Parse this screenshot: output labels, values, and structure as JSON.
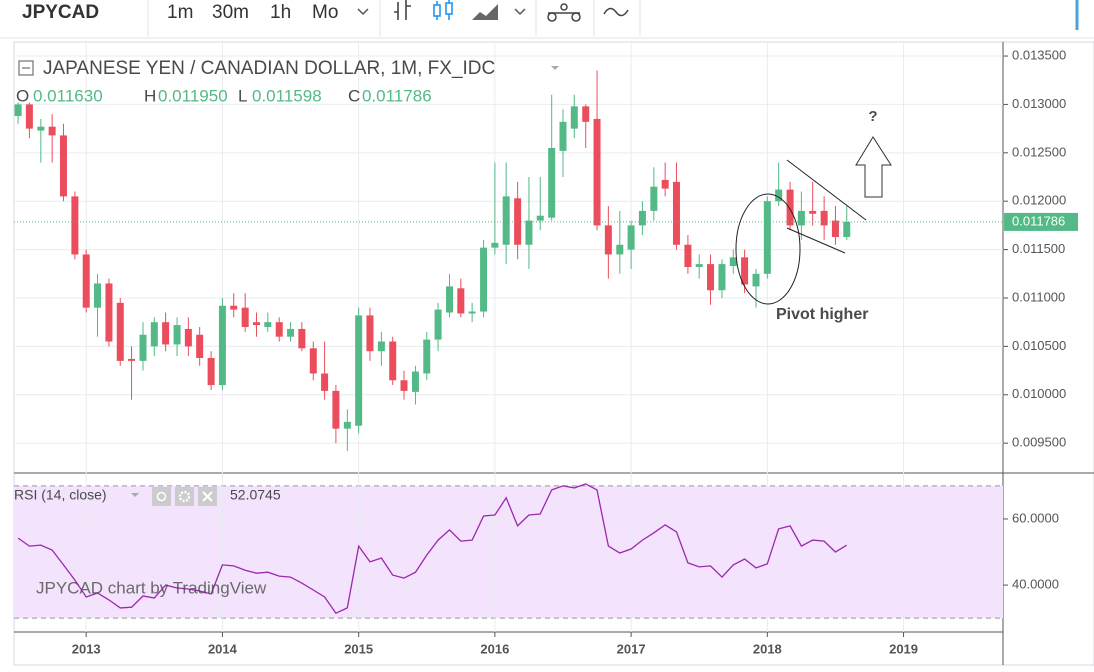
{
  "toolbar": {
    "symbol": "JPYCAD",
    "intervals": [
      "1m",
      "30m",
      "1h",
      "Mo"
    ]
  },
  "chart_data": [
    {
      "type": "candlestick",
      "title": "JAPANESE YEN / CANADIAN DOLLAR, 1M, FX_IDC",
      "ohlc_legend": [
        {
          "label": "O",
          "text": "0.011630"
        },
        {
          "label": "H",
          "text": "0.011950"
        },
        {
          "label": "L",
          "text": "0.011598"
        },
        {
          "label": "C",
          "text": "0.011786"
        }
      ],
      "x": [
        2012.5,
        2012.583,
        2012.667,
        2012.75,
        2012.833,
        2012.917,
        2013,
        2013.083,
        2013.167,
        2013.25,
        2013.333,
        2013.417,
        2013.5,
        2013.583,
        2013.667,
        2013.75,
        2013.833,
        2013.917,
        2014,
        2014.083,
        2014.167,
        2014.25,
        2014.333,
        2014.417,
        2014.5,
        2014.583,
        2014.667,
        2014.75,
        2014.833,
        2014.917,
        2015,
        2015.083,
        2015.167,
        2015.25,
        2015.333,
        2015.417,
        2015.5,
        2015.583,
        2015.667,
        2015.75,
        2015.833,
        2015.917,
        2016,
        2016.083,
        2016.167,
        2016.25,
        2016.333,
        2016.417,
        2016.5,
        2016.583,
        2016.667,
        2016.75,
        2016.833,
        2016.917,
        2017,
        2017.083,
        2017.167,
        2017.25,
        2017.333,
        2017.417,
        2017.5,
        2017.583,
        2017.667,
        2017.75,
        2017.833,
        2017.917,
        2018,
        2018.083,
        2018.167,
        2018.25,
        2018.333,
        2018.417,
        2018.5,
        2018.583
      ],
      "open": [
        0.01288,
        0.013,
        0.01273,
        0.01277,
        0.01268,
        0.01205,
        0.01145,
        0.0109,
        0.01115,
        0.01095,
        0.01037,
        0.01035,
        0.0105,
        0.01075,
        0.01052,
        0.01068,
        0.01062,
        0.01038,
        0.0101,
        0.01092,
        0.0109,
        0.01075,
        0.0107,
        0.01075,
        0.0106,
        0.01068,
        0.01048,
        0.01022,
        0.01004,
        0.00965,
        0.00968,
        0.01082,
        0.01045,
        0.01055,
        0.01015,
        0.01003,
        0.01022,
        0.01057,
        0.01085,
        0.0111,
        0.01084,
        0.01086,
        0.01152,
        0.01155,
        0.01203,
        0.01155,
        0.0118,
        0.01183,
        0.01252,
        0.01275,
        0.01298,
        0.01285,
        0.01175,
        0.01145,
        0.0115,
        0.01175,
        0.0119,
        0.01222,
        0.0122,
        0.01155,
        0.01132,
        0.01135,
        0.01108,
        0.01133,
        0.01142,
        0.01112,
        0.01125,
        0.012,
        0.01212,
        0.01175,
        0.0119,
        0.0119,
        0.0118,
        0.01163
      ],
      "high": [
        0.01302,
        0.01302,
        0.01285,
        0.0129,
        0.0128,
        0.0121,
        0.0115,
        0.01125,
        0.0112,
        0.011,
        0.0105,
        0.01075,
        0.0108,
        0.01085,
        0.0108,
        0.0108,
        0.0107,
        0.01045,
        0.011,
        0.01105,
        0.01105,
        0.01085,
        0.01085,
        0.0108,
        0.01075,
        0.01075,
        0.01055,
        0.01055,
        0.0101,
        0.00985,
        0.0109,
        0.0109,
        0.01065,
        0.0106,
        0.01025,
        0.0103,
        0.01065,
        0.01095,
        0.01125,
        0.0112,
        0.01095,
        0.0116,
        0.0124,
        0.0124,
        0.0122,
        0.01225,
        0.01225,
        0.0131,
        0.01295,
        0.0131,
        0.013,
        0.01335,
        0.01195,
        0.0119,
        0.0118,
        0.012,
        0.01235,
        0.0124,
        0.0124,
        0.01165,
        0.01145,
        0.01145,
        0.0114,
        0.0115,
        0.0115,
        0.0113,
        0.01205,
        0.0124,
        0.0122,
        0.0121,
        0.0122,
        0.01205,
        0.01195,
        0.01195
      ],
      "low": [
        0.0128,
        0.01265,
        0.0124,
        0.0124,
        0.012,
        0.0114,
        0.01085,
        0.0106,
        0.0105,
        0.0103,
        0.00995,
        0.01025,
        0.0104,
        0.01045,
        0.0104,
        0.0104,
        0.0103,
        0.01005,
        0.01005,
        0.0108,
        0.01065,
        0.0106,
        0.01065,
        0.01055,
        0.01055,
        0.01045,
        0.01015,
        0.00995,
        0.0095,
        0.00942,
        0.0096,
        0.01035,
        0.0103,
        0.0101,
        0.00995,
        0.0099,
        0.01015,
        0.01045,
        0.0108,
        0.0108,
        0.01075,
        0.0108,
        0.01145,
        0.01135,
        0.0114,
        0.0113,
        0.0117,
        0.0118,
        0.01225,
        0.01265,
        0.01255,
        0.0117,
        0.0112,
        0.01125,
        0.0113,
        0.01165,
        0.0118,
        0.01205,
        0.0115,
        0.01125,
        0.0112,
        0.01093,
        0.011,
        0.01125,
        0.01105,
        0.0109,
        0.0112,
        0.01195,
        0.0117,
        0.0116,
        0.01175,
        0.0116,
        0.01155,
        0.011598
      ],
      "close": [
        0.013,
        0.01275,
        0.01277,
        0.01268,
        0.01205,
        0.01145,
        0.0109,
        0.01115,
        0.01055,
        0.01035,
        0.01035,
        0.01062,
        0.01075,
        0.01052,
        0.01072,
        0.0105,
        0.01038,
        0.0101,
        0.01092,
        0.01088,
        0.0107,
        0.01072,
        0.01075,
        0.0106,
        0.01068,
        0.01048,
        0.01022,
        0.01004,
        0.00965,
        0.00972,
        0.01082,
        0.01045,
        0.01055,
        0.01015,
        0.01004,
        0.01024,
        0.01057,
        0.01088,
        0.01112,
        0.01084,
        0.01086,
        0.01152,
        0.01157,
        0.01205,
        0.01155,
        0.0118,
        0.01185,
        0.01255,
        0.01282,
        0.01298,
        0.01282,
        0.01175,
        0.01145,
        0.01155,
        0.01175,
        0.0119,
        0.01215,
        0.01213,
        0.01155,
        0.01132,
        0.01135,
        0.01108,
        0.01135,
        0.01142,
        0.01114,
        0.01125,
        0.012,
        0.01212,
        0.01175,
        0.0119,
        0.01187,
        0.01175,
        0.01163,
        0.011786
      ],
      "up_color": "#53b987",
      "down_color": "#eb4d5c",
      "xlim": [
        2012.47,
        2019.73
      ],
      "xticks": [
        2013,
        2014,
        2015,
        2016,
        2017,
        2018,
        2019
      ],
      "ylim": [
        0.009202,
        0.013645
      ],
      "yticks": [
        {
          "value": 0.0095,
          "label": "0.009500"
        },
        {
          "value": 0.01,
          "label": "0.010000"
        },
        {
          "value": 0.0105,
          "label": "0.010500"
        },
        {
          "value": 0.011,
          "label": "0.011000"
        },
        {
          "value": 0.0115,
          "label": "0.011500"
        },
        {
          "value": 0.012,
          "label": "0.012000"
        },
        {
          "value": 0.0125,
          "label": "0.012500"
        },
        {
          "value": 0.013,
          "label": "0.013000"
        },
        {
          "value": 0.0135,
          "label": "0.013500"
        }
      ],
      "last_price": {
        "value": 0.011786,
        "label": "0.011786"
      },
      "annotations": [
        "Pivot higher",
        "?"
      ],
      "watermark": "JPYCAD chart by TradingView",
      "grid": true
    },
    {
      "type": "line",
      "title": "RSI (14, close)",
      "current_label": "52.0745",
      "color": "#9c27b0",
      "x": [
        2012.5,
        2012.583,
        2012.667,
        2012.75,
        2012.833,
        2012.917,
        2013,
        2013.083,
        2013.167,
        2013.25,
        2013.333,
        2013.417,
        2013.5,
        2013.583,
        2013.667,
        2013.75,
        2013.833,
        2013.917,
        2014,
        2014.083,
        2014.167,
        2014.25,
        2014.333,
        2014.417,
        2014.5,
        2014.583,
        2014.667,
        2014.75,
        2014.833,
        2014.917,
        2015,
        2015.083,
        2015.167,
        2015.25,
        2015.333,
        2015.417,
        2015.5,
        2015.583,
        2015.667,
        2015.75,
        2015.833,
        2015.917,
        2016,
        2016.083,
        2016.167,
        2016.25,
        2016.333,
        2016.417,
        2016.5,
        2016.583,
        2016.667,
        2016.75,
        2016.833,
        2016.917,
        2017,
        2017.083,
        2017.167,
        2017.25,
        2017.333,
        2017.417,
        2017.5,
        2017.583,
        2017.667,
        2017.75,
        2017.833,
        2017.917,
        2018,
        2018.083,
        2018.167,
        2018.25,
        2018.333,
        2018.417,
        2018.5,
        2018.583
      ],
      "values": [
        54.2,
        51.8,
        52.1,
        50.6,
        46.1,
        41.5,
        36.4,
        37.6,
        35.5,
        33.1,
        33.3,
        36.7,
        36.1,
        40.0,
        39.1,
        38.8,
        38.2,
        37.3,
        46.1,
        45.8,
        44.5,
        43.6,
        43.9,
        42.7,
        42.4,
        40.6,
        38.5,
        36.4,
        31.5,
        33.1,
        51.8,
        47.0,
        48.2,
        43.0,
        42.1,
        43.9,
        49.1,
        53.6,
        56.7,
        53.3,
        53.6,
        60.9,
        61.2,
        66.4,
        57.9,
        61.2,
        61.5,
        68.8,
        70.0,
        69.4,
        70.6,
        68.8,
        51.8,
        49.7,
        50.9,
        53.6,
        55.8,
        58.2,
        56.1,
        46.7,
        45.5,
        45.8,
        42.4,
        46.1,
        47.9,
        45.2,
        46.4,
        57.0,
        57.9,
        51.8,
        53.6,
        53.3,
        50.0,
        52.0745
      ],
      "xlim": [
        2012.47,
        2019.73
      ],
      "ylim": [
        25.8,
        73.3
      ],
      "yticks": [
        {
          "value": 40,
          "label": "40.0000"
        },
        {
          "value": 60,
          "label": "60.0000"
        }
      ],
      "bands": [
        30,
        70
      ]
    }
  ]
}
